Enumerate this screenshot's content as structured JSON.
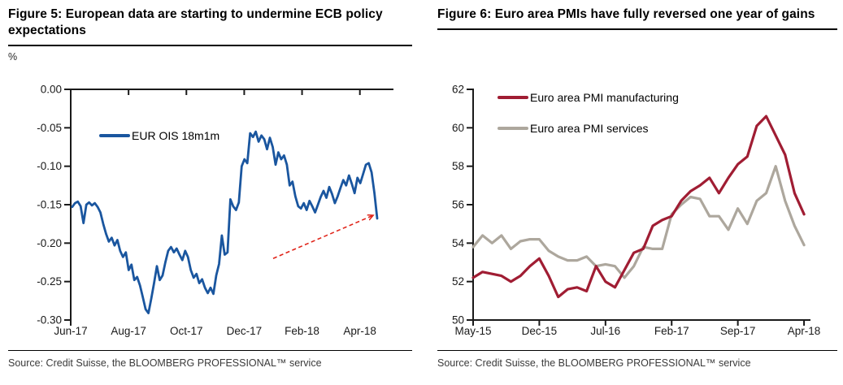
{
  "page": {
    "source_note": "Source: Credit Suisse, the BLOOMBERG PROFESSIONAL™ service"
  },
  "chart_data": [
    {
      "type": "line",
      "title": "Figure 5: European data are starting to undermine ECB policy expectations",
      "ylabel": "%",
      "xlabel": "",
      "x_axis_position": "top",
      "grid": false,
      "legend_position": "inside-upper-left",
      "x_tick_labels": [
        "Jun-17",
        "Aug-17",
        "Oct-17",
        "Dec-17",
        "Feb-18",
        "Apr-18"
      ],
      "x_tick_positions": [
        0,
        2,
        4,
        6,
        8,
        10
      ],
      "xlim": [
        0,
        11.05
      ],
      "ylim": [
        -0.3,
        0.0
      ],
      "y_tick_values": [
        0,
        -0.05,
        -0.1,
        -0.15,
        -0.2,
        -0.25,
        -0.3
      ],
      "y_tick_labels": [
        "0.00",
        "-0.05",
        "-0.10",
        "-0.15",
        "-0.20",
        "-0.25",
        "-0.30"
      ],
      "series": [
        {
          "name": "EUR OIS 18m1m",
          "color": "#1A569F",
          "x_unit": "months since Jun-2017",
          "x_start": 0.05,
          "x_end": 10.6,
          "values": [
            -0.153,
            -0.148,
            -0.146,
            -0.152,
            -0.174,
            -0.15,
            -0.147,
            -0.151,
            -0.148,
            -0.153,
            -0.16,
            -0.175,
            -0.188,
            -0.198,
            -0.193,
            -0.203,
            -0.196,
            -0.21,
            -0.218,
            -0.212,
            -0.235,
            -0.228,
            -0.248,
            -0.244,
            -0.255,
            -0.27,
            -0.286,
            -0.291,
            -0.272,
            -0.252,
            -0.23,
            -0.248,
            -0.242,
            -0.225,
            -0.21,
            -0.205,
            -0.212,
            -0.207,
            -0.215,
            -0.222,
            -0.21,
            -0.218,
            -0.235,
            -0.245,
            -0.24,
            -0.252,
            -0.247,
            -0.258,
            -0.265,
            -0.258,
            -0.266,
            -0.242,
            -0.227,
            -0.19,
            -0.215,
            -0.212,
            -0.143,
            -0.152,
            -0.157,
            -0.147,
            -0.1,
            -0.091,
            -0.096,
            -0.057,
            -0.062,
            -0.055,
            -0.068,
            -0.06,
            -0.065,
            -0.078,
            -0.063,
            -0.075,
            -0.098,
            -0.082,
            -0.091,
            -0.086,
            -0.098,
            -0.125,
            -0.12,
            -0.139,
            -0.152,
            -0.155,
            -0.148,
            -0.157,
            -0.145,
            -0.152,
            -0.16,
            -0.15,
            -0.14,
            -0.132,
            -0.141,
            -0.127,
            -0.136,
            -0.148,
            -0.139,
            -0.128,
            -0.118,
            -0.125,
            -0.112,
            -0.123,
            -0.135,
            -0.115,
            -0.122,
            -0.11,
            -0.098,
            -0.096,
            -0.108,
            -0.135,
            -0.168
          ]
        }
      ],
      "annotation": {
        "type": "dashed-arrow",
        "color": "#E02419",
        "from_x": 7.0,
        "from_y": -0.22,
        "to_x": 10.45,
        "to_y": -0.164
      },
      "source": "Source: Credit Suisse, the BLOOMBERG PROFESSIONAL™ service"
    },
    {
      "type": "line",
      "title": "Figure 6: Euro area PMIs have fully reversed one year of gains",
      "ylabel": "",
      "xlabel": "",
      "x_axis_position": "bottom",
      "grid": false,
      "legend_position": "inside-upper-left",
      "x_categories": [
        "May-15",
        "Jun-15",
        "Jul-15",
        "Aug-15",
        "Sep-15",
        "Oct-15",
        "Nov-15",
        "Dec-15",
        "Jan-16",
        "Feb-16",
        "Mar-16",
        "Apr-16",
        "May-16",
        "Jun-16",
        "Jul-16",
        "Aug-16",
        "Sep-16",
        "Oct-16",
        "Nov-16",
        "Dec-16",
        "Jan-17",
        "Feb-17",
        "Mar-17",
        "Apr-17",
        "May-17",
        "Jun-17",
        "Jul-17",
        "Aug-17",
        "Sep-17",
        "Oct-17",
        "Nov-17",
        "Dec-17",
        "Jan-18",
        "Feb-18",
        "Mar-18",
        "Apr-18"
      ],
      "x_tick_labels": [
        "May-15",
        "Dec-15",
        "Jul-16",
        "Feb-17",
        "Sep-17",
        "Apr-18"
      ],
      "x_tick_positions": [
        0,
        7,
        14,
        21,
        28,
        35
      ],
      "xlim": [
        0,
        36.2
      ],
      "ylim": [
        50,
        62
      ],
      "y_tick_values": [
        62,
        60,
        58,
        56,
        54,
        52,
        50
      ],
      "y_tick_labels": [
        "62",
        "60",
        "58",
        "56",
        "54",
        "52",
        "50"
      ],
      "series": [
        {
          "name": "Euro area PMI manufacturing",
          "color": "#A01D33",
          "values": [
            52.2,
            52.5,
            52.4,
            52.3,
            52.0,
            52.3,
            52.8,
            53.2,
            52.3,
            51.2,
            51.6,
            51.7,
            51.5,
            52.8,
            52.0,
            51.7,
            52.6,
            53.5,
            53.7,
            54.9,
            55.2,
            55.4,
            56.2,
            56.7,
            57.0,
            57.4,
            56.6,
            57.4,
            58.1,
            58.5,
            60.1,
            60.6,
            59.6,
            58.6,
            56.6,
            55.5
          ]
        },
        {
          "name": "Euro area PMI services",
          "color": "#ADA79D",
          "values": [
            53.8,
            54.4,
            54.0,
            54.4,
            53.7,
            54.1,
            54.2,
            54.2,
            53.6,
            53.3,
            53.1,
            53.1,
            53.3,
            52.8,
            52.9,
            52.8,
            52.2,
            52.8,
            53.8,
            53.7,
            53.7,
            55.5,
            56.0,
            56.4,
            56.3,
            55.4,
            55.4,
            54.7,
            55.8,
            55.0,
            56.2,
            56.6,
            58.0,
            56.2,
            54.9,
            53.9
          ]
        }
      ],
      "source": "Source: Credit Suisse, the BLOOMBERG PROFESSIONAL™ service"
    }
  ]
}
